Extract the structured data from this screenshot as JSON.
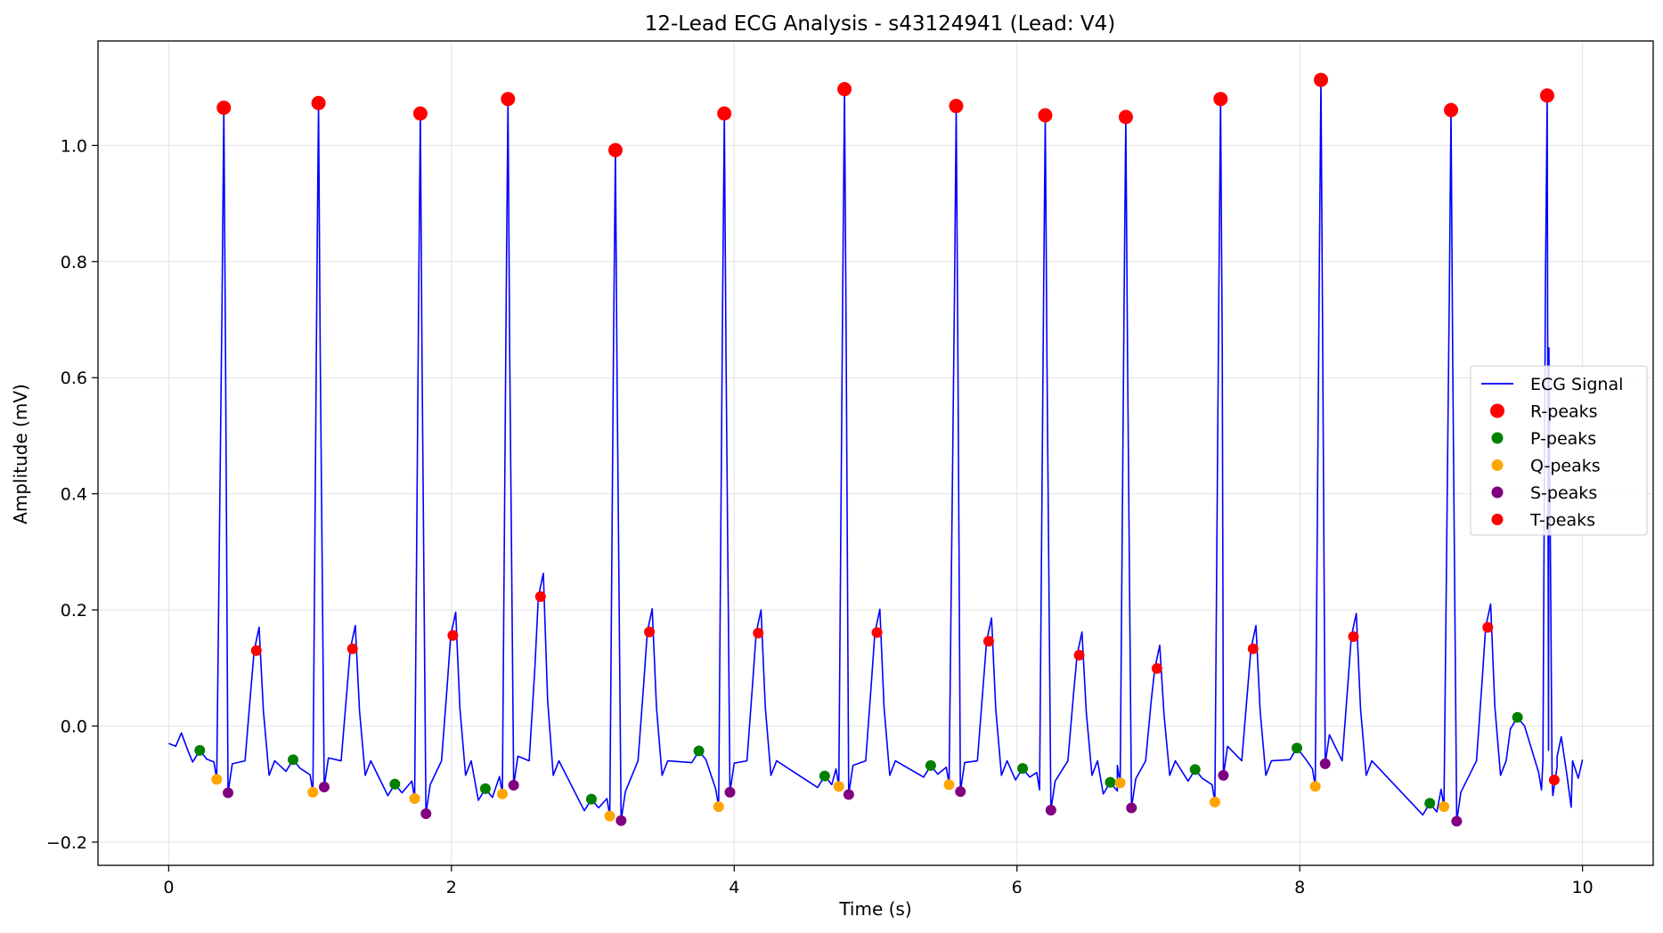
{
  "chart_data": {
    "type": "line",
    "title": "12-Lead ECG Analysis - s43124941 (Lead: V4)",
    "xlabel": "Time (s)",
    "ylabel": "Amplitude (mV)",
    "xlim": [
      -0.5,
      10.5
    ],
    "ylim": [
      -0.24,
      1.18
    ],
    "xticks": [
      0,
      2,
      4,
      6,
      8,
      10
    ],
    "xtick_labels": [
      "0",
      "2",
      "4",
      "6",
      "8",
      "10"
    ],
    "yticks": [
      -0.2,
      0.0,
      0.2,
      0.4,
      0.6,
      0.8,
      1.0
    ],
    "ytick_labels": [
      "−0.2",
      "0.0",
      "0.2",
      "0.4",
      "0.6",
      "0.8",
      "1.0"
    ],
    "grid": true,
    "legend_position": "center-right",
    "series": [
      {
        "name": "ECG Signal",
        "kind": "line",
        "color": "#0000ff"
      },
      {
        "name": "R-peaks",
        "kind": "marker",
        "color": "#ff0000",
        "size": "large",
        "x": [
          0.39,
          1.06,
          1.78,
          2.4,
          3.16,
          3.93,
          4.78,
          5.57,
          6.2,
          6.77,
          7.44,
          8.15,
          9.07,
          9.75
        ],
        "y": [
          1.065,
          1.073,
          1.055,
          1.08,
          0.992,
          1.055,
          1.097,
          1.068,
          1.052,
          1.049,
          1.08,
          1.113,
          1.061,
          1.086
        ]
      },
      {
        "name": "P-peaks",
        "kind": "marker",
        "color": "#008000",
        "size": "small",
        "x": [
          0.22,
          0.88,
          1.6,
          2.24,
          2.99,
          3.75,
          4.64,
          5.39,
          6.04,
          6.66,
          7.26,
          7.98,
          8.92,
          9.54
        ],
        "y": [
          -0.042,
          -0.058,
          -0.1,
          -0.108,
          -0.126,
          -0.043,
          -0.086,
          -0.068,
          -0.073,
          -0.097,
          -0.075,
          -0.038,
          -0.133,
          0.015
        ]
      },
      {
        "name": "Q-peaks",
        "kind": "marker",
        "color": "#ffa500",
        "size": "small",
        "x": [
          0.34,
          1.02,
          1.74,
          2.36,
          3.12,
          3.89,
          4.74,
          5.52,
          6.73,
          7.4,
          8.11,
          9.02
        ],
        "y": [
          -0.092,
          -0.114,
          -0.125,
          -0.117,
          -0.155,
          -0.139,
          -0.104,
          -0.101,
          -0.098,
          -0.131,
          -0.104,
          -0.139
        ]
      },
      {
        "name": "S-peaks",
        "kind": "marker",
        "color": "#800080",
        "size": "small",
        "x": [
          0.42,
          1.1,
          1.82,
          2.44,
          3.2,
          3.97,
          4.81,
          5.6,
          6.24,
          6.81,
          7.46,
          8.18,
          9.11
        ],
        "y": [
          -0.115,
          -0.105,
          -0.151,
          -0.102,
          -0.163,
          -0.114,
          -0.118,
          -0.113,
          -0.145,
          -0.141,
          -0.085,
          -0.065,
          -0.164
        ]
      },
      {
        "name": "T-peaks",
        "kind": "marker",
        "color": "#ff0000",
        "size": "small",
        "x": [
          0.62,
          1.3,
          2.01,
          2.63,
          3.4,
          4.17,
          5.01,
          5.8,
          6.44,
          6.99,
          7.67,
          8.38,
          9.33,
          9.8
        ],
        "y": [
          0.13,
          0.133,
          0.156,
          0.223,
          0.162,
          0.16,
          0.161,
          0.146,
          0.122,
          0.099,
          0.133,
          0.154,
          0.17,
          -0.093
        ]
      }
    ]
  }
}
